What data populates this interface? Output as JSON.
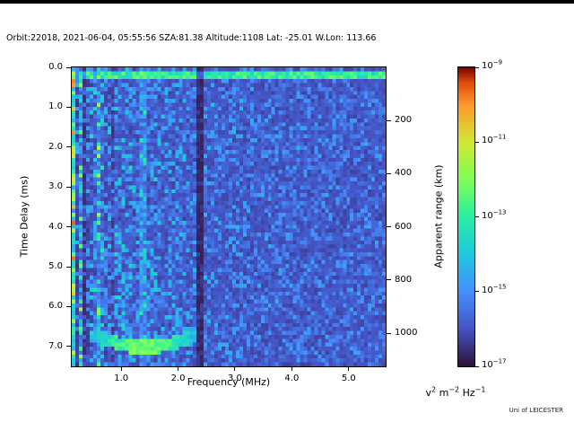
{
  "title": "Orbit:22018, 2021-06-04, 05:55:56 SZA:81.38 Altitude:1108 Lat: -25.01 W.Lon: 113.66",
  "credit": "Uni of LEICESTER",
  "chart_data": {
    "type": "heatmap",
    "xlabel": "Frequency (MHz)",
    "ylabel_left": "Time Delay (ms)",
    "ylabel_right": "Apparent range (km)",
    "xlim": [
      0.13,
      5.65
    ],
    "ylim": [
      0,
      7.5
    ],
    "ylim_right": [
      0,
      1125
    ],
    "x_ticks": [
      {
        "v": 1.0,
        "label": "1.0"
      },
      {
        "v": 2.0,
        "label": "2.0"
      },
      {
        "v": 3.0,
        "label": "3.0"
      },
      {
        "v": 4.0,
        "label": "4.0"
      },
      {
        "v": 5.0,
        "label": "5.0"
      }
    ],
    "y_ticks_left": [
      {
        "v": 0.0,
        "label": "0.0"
      },
      {
        "v": 1.0,
        "label": "1.0"
      },
      {
        "v": 2.0,
        "label": "2.0"
      },
      {
        "v": 3.0,
        "label": "3.0"
      },
      {
        "v": 4.0,
        "label": "4.0"
      },
      {
        "v": 5.0,
        "label": "5.0"
      },
      {
        "v": 6.0,
        "label": "6.0"
      },
      {
        "v": 7.0,
        "label": "7.0"
      }
    ],
    "y_ticks_right": [
      {
        "v": 200,
        "label": "200"
      },
      {
        "v": 400,
        "label": "400"
      },
      {
        "v": 600,
        "label": "600"
      },
      {
        "v": 800,
        "label": "800"
      },
      {
        "v": 1000,
        "label": "1000"
      }
    ],
    "grid": {
      "cols": 88,
      "rows": 76
    },
    "noise": {
      "seed": 20210604,
      "base": 0.09,
      "rand_flat": 0.05,
      "speckle": 0.3,
      "left_floor": 0.55,
      "left_amp": 0.95,
      "left_scale": 1.6,
      "streak_max_f": 0.9,
      "streak_lo": 0.55,
      "streak_hi": 1.65
    },
    "features": [
      {
        "type": "hband",
        "d0": 0.1,
        "d1": 0.31,
        "value": 0.5,
        "jitter": 0.2
      },
      {
        "type": "vbright",
        "f0": 0.13,
        "f1": 0.2,
        "add": 0.2
      },
      {
        "type": "vdark",
        "f0": 0.2,
        "f1": 0.28,
        "mult": 0.45
      },
      {
        "type": "vdark",
        "f0": 0.31,
        "f1": 0.38,
        "mult": 0.5
      },
      {
        "type": "vdark",
        "f0": 0.52,
        "f1": 0.58,
        "mult": 0.6
      },
      {
        "type": "vbright",
        "f0": 1.3,
        "f1": 1.43,
        "add": 0.09
      },
      {
        "type": "blob",
        "f": 0.17,
        "d": 1.98,
        "rf": 0.06,
        "rd": 0.1,
        "value": 0.52
      },
      {
        "type": "trace",
        "f0": 0.5,
        "f1": 2.35,
        "d0": 6.7,
        "d_dip": 7.02,
        "width": 0.17,
        "vmin": 0.3,
        "vmax": 0.6
      },
      {
        "type": "vdark",
        "f0": 2.31,
        "f1": 2.45,
        "mult": 0.28
      }
    ],
    "colormap": [
      {
        "t": 0.0,
        "c": "#30123b"
      },
      {
        "t": 0.125,
        "c": "#4454c4"
      },
      {
        "t": 0.25,
        "c": "#4490fe"
      },
      {
        "t": 0.375,
        "c": "#1fc8de"
      },
      {
        "t": 0.5,
        "c": "#29efa2"
      },
      {
        "t": 0.625,
        "c": "#7dff56"
      },
      {
        "t": 0.75,
        "c": "#d2e935"
      },
      {
        "t": 0.875,
        "c": "#fe992c"
      },
      {
        "t": 0.95,
        "c": "#e04a0c"
      },
      {
        "t": 1.0,
        "c": "#7a0403"
      }
    ],
    "colorbar": {
      "vmax": -9,
      "vmin": -17,
      "ticks": [
        {
          "value": -9,
          "base": "10",
          "exp": "−9"
        },
        {
          "value": -11,
          "base": "10",
          "exp": "−11"
        },
        {
          "value": -13,
          "base": "10",
          "exp": "−13"
        },
        {
          "value": -15,
          "base": "10",
          "exp": "−15"
        },
        {
          "value": -17,
          "base": "10",
          "exp": "−17"
        }
      ],
      "unit_parts": [
        {
          "t": "v",
          "s": "2"
        },
        {
          "t": " m",
          "s": "−2"
        },
        {
          "t": " Hz",
          "s": "−1"
        }
      ]
    }
  }
}
